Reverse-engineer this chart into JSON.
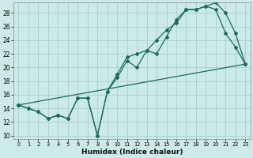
{
  "xlabel": "Humidex (Indice chaleur)",
  "background_color": "#cceae7",
  "grid_color": "#aad4d0",
  "line_color": "#1a6b5a",
  "xlim": [
    -0.5,
    23.5
  ],
  "ylim": [
    9.5,
    29.5
  ],
  "xticks": [
    0,
    1,
    2,
    3,
    4,
    5,
    6,
    7,
    8,
    9,
    10,
    11,
    12,
    13,
    14,
    15,
    16,
    17,
    18,
    19,
    20,
    21,
    22,
    23
  ],
  "yticks": [
    10,
    12,
    14,
    16,
    18,
    20,
    22,
    24,
    26,
    28
  ],
  "series1_x": [
    0,
    1,
    2,
    3,
    4,
    5,
    6,
    7,
    8,
    9,
    10,
    11,
    12,
    13,
    14,
    15,
    16,
    17,
    18,
    19,
    20,
    21,
    22,
    23
  ],
  "series1_y": [
    14.5,
    14.0,
    13.5,
    12.5,
    13.0,
    12.5,
    15.5,
    15.5,
    10.0,
    16.5,
    18.5,
    21.0,
    20.0,
    22.5,
    22.0,
    24.5,
    27.0,
    28.5,
    28.5,
    29.0,
    28.5,
    25.0,
    23.0,
    20.5
  ],
  "series2_x": [
    0,
    1,
    2,
    3,
    4,
    5,
    6,
    7,
    8,
    9,
    10,
    11,
    12,
    13,
    14,
    15,
    16,
    17,
    18,
    19,
    20,
    21,
    22,
    23
  ],
  "series2_y": [
    14.5,
    14.0,
    13.5,
    12.5,
    13.0,
    12.5,
    15.5,
    15.5,
    10.0,
    16.5,
    19.0,
    21.5,
    22.0,
    22.5,
    24.0,
    25.5,
    26.5,
    28.5,
    28.5,
    29.0,
    29.5,
    28.0,
    25.0,
    20.5
  ],
  "series3_x": [
    0,
    23
  ],
  "series3_y": [
    14.5,
    20.5
  ]
}
